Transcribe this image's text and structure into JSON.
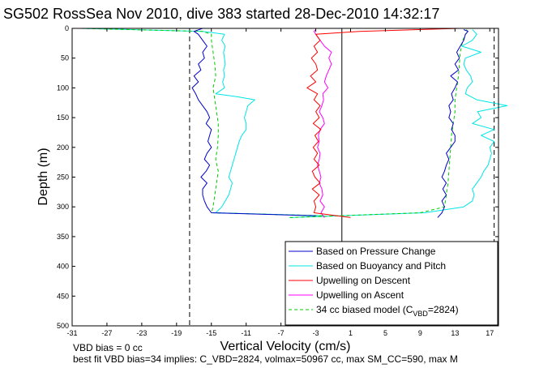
{
  "chart_data": {
    "type": "line",
    "title": "SG502 RossSea Nov 2010, dive 383 started 28-Dec-2010 14:32:17",
    "xlabel": "Vertical Velocity (cm/s)",
    "ylabel": "Depth (m)",
    "xlim": [
      -31,
      18
    ],
    "ylim": [
      500,
      0
    ],
    "y_reversed": true,
    "x_ticks": [
      -31,
      -27,
      -23,
      -19,
      -15,
      -11,
      -7,
      -3,
      1,
      5,
      9,
      13,
      17
    ],
    "y_ticks": [
      0,
      50,
      100,
      150,
      200,
      250,
      300,
      350,
      400,
      450,
      500
    ],
    "grid": false,
    "legend_position": "bottom-right",
    "vertical_reference_lines": [
      {
        "x": -17.5,
        "style": "dashed",
        "color": "#000000"
      },
      {
        "x": 0,
        "style": "solid",
        "color": "#000000"
      },
      {
        "x": 17.5,
        "style": "dashed",
        "color": "#000000"
      }
    ],
    "series": [
      {
        "name": "Based on Pressure Change",
        "color": "#0000cc",
        "style": "solid",
        "descent": {
          "depth": [
            0,
            5,
            10,
            20,
            30,
            40,
            50,
            60,
            70,
            80,
            90,
            100,
            110,
            120,
            130,
            140,
            150,
            160,
            170,
            180,
            190,
            200,
            210,
            220,
            230,
            240,
            250,
            260,
            270,
            280,
            290,
            300,
            310,
            315
          ],
          "vel": [
            -16,
            -17,
            -16.5,
            -16,
            -15.5,
            -16,
            -15.8,
            -16.5,
            -16.2,
            -17,
            -16.5,
            -17.2,
            -16.8,
            -16.5,
            -16,
            -15.5,
            -15.2,
            -15.6,
            -15,
            -15.2,
            -15.4,
            -15,
            -15.5,
            -15.8,
            -15.2,
            -15.6,
            -16.2,
            -15.5,
            -16,
            -16,
            -15.8,
            -15.5,
            -15,
            -3
          ]
        },
        "ascent": {
          "depth": [
            318,
            310,
            300,
            290,
            280,
            270,
            260,
            250,
            240,
            230,
            220,
            210,
            200,
            190,
            180,
            170,
            160,
            150,
            140,
            130,
            120,
            110,
            100,
            90,
            80,
            70,
            60,
            50,
            40,
            30,
            20,
            10,
            5,
            2
          ],
          "vel": [
            11,
            11.5,
            11.8,
            11.5,
            12,
            11.6,
            12,
            11.5,
            11.8,
            12,
            12.3,
            12,
            12.5,
            13,
            13,
            12.6,
            12.8,
            12.3,
            12.5,
            12.3,
            12.8,
            12.6,
            13,
            13.3,
            12.5,
            13.4,
            13,
            13.5,
            13.2,
            13.6,
            14,
            14.2,
            14.5,
            14
          ]
        }
      },
      {
        "name": "Based on Buoyancy and Pitch",
        "color": "#00e5e5",
        "style": "solid",
        "descent": {
          "depth": [
            0,
            5,
            10,
            20,
            30,
            40,
            50,
            60,
            70,
            80,
            90,
            100,
            110,
            115,
            120,
            130,
            140,
            150,
            160,
            170,
            180,
            190,
            200,
            210,
            220,
            230,
            240,
            250,
            260,
            270,
            280,
            290,
            300,
            310,
            315
          ],
          "vel": [
            -30,
            -16,
            -13.5,
            -13.8,
            -13.4,
            -13.6,
            -13.5,
            -13.4,
            -13.6,
            -13.5,
            -13.7,
            -13.5,
            -14.5,
            -12,
            -10,
            -10.8,
            -11,
            -11.2,
            -11,
            -11,
            -11.5,
            -11.8,
            -12,
            -12.2,
            -12.4,
            -12.6,
            -12.8,
            -13,
            -12.6,
            -12.8,
            -13,
            -13.4,
            -13.8,
            -14.5,
            -2
          ]
        },
        "ascent": {
          "depth": [
            318,
            310,
            300,
            290,
            280,
            270,
            260,
            250,
            240,
            230,
            220,
            210,
            200,
            190,
            180,
            170,
            160,
            150,
            140,
            130,
            120,
            110,
            100,
            90,
            80,
            70,
            60,
            50,
            40,
            30,
            20,
            10,
            5,
            2
          ],
          "vel": [
            -6,
            9.5,
            14,
            15,
            15.2,
            15,
            15.5,
            16,
            16.3,
            16.8,
            17,
            17.2,
            17,
            17.5,
            16,
            17.5,
            15,
            16,
            15.6,
            19,
            15.5,
            14.2,
            14.4,
            15,
            14.8,
            14.3,
            14,
            14.2,
            16,
            13.8,
            15,
            15.5,
            15.2,
            15
          ]
        }
      },
      {
        "name": "Upwelling on Descent",
        "color": "#ff0000",
        "style": "solid",
        "profile": {
          "depth": [
            0,
            5,
            10,
            20,
            30,
            40,
            50,
            60,
            70,
            80,
            90,
            100,
            110,
            120,
            130,
            140,
            150,
            160,
            170,
            180,
            190,
            200,
            210,
            220,
            230,
            240,
            250,
            260,
            270,
            280,
            290,
            300,
            310,
            318
          ],
          "vel": [
            13.5,
            2,
            -3,
            -2.5,
            -3.2,
            -2.8,
            -3.5,
            -3,
            -2.8,
            -3.6,
            -3,
            -4,
            -2.8,
            -3.2,
            -2.5,
            -3,
            -2.6,
            -3.3,
            -2.4,
            -3.1,
            -2.7,
            -3.3,
            -2.8,
            -3.2,
            -2.6,
            -3.4,
            -3.1,
            -2.5,
            -3.4,
            -2.6,
            -3.2,
            -3,
            -3.2,
            1
          ]
        }
      },
      {
        "name": "Upwelling on Ascent",
        "color": "#ff00ff",
        "style": "solid",
        "profile": {
          "depth": [
            318,
            310,
            300,
            290,
            280,
            270,
            260,
            250,
            240,
            230,
            220,
            210,
            200,
            190,
            180,
            170,
            160,
            150,
            140,
            130,
            120,
            110,
            100,
            90,
            80,
            70,
            60,
            50,
            40,
            30,
            20,
            10,
            5,
            2
          ],
          "vel": [
            -2,
            -2.4,
            -2,
            -2.5,
            -2.2,
            -2.3,
            -2.6,
            -2.4,
            -2.6,
            -2.8,
            -2.6,
            -2.5,
            -2.8,
            -2.6,
            -2.7,
            -2.5,
            -2,
            -2.2,
            -2.6,
            -2.3,
            -2.1,
            -2.2,
            -1.6,
            -2,
            -1.8,
            -1.5,
            -1.2,
            -1.5,
            -1.2,
            -2,
            -2.5,
            -3,
            -3.2,
            -3
          ]
        }
      },
      {
        "name": "34 cc biased model (C",
        "legend_subscript": "VBD",
        "legend_suffix": "=2824)",
        "color": "#00cc00",
        "style": "dashed",
        "descent": {
          "depth": [
            0,
            5,
            10,
            20,
            40,
            60,
            80,
            100,
            120,
            140,
            160,
            180,
            200,
            220,
            240,
            260,
            280,
            300,
            310,
            315
          ],
          "vel": [
            -30,
            -16,
            -15,
            -15,
            -14.8,
            -14.6,
            -14.5,
            -14.8,
            -14.6,
            -14.4,
            -14.2,
            -14.2,
            -14.3,
            -14.5,
            -14.2,
            -14.4,
            -14.6,
            -14.8,
            -15,
            -2
          ]
        },
        "ascent": {
          "depth": [
            318,
            310,
            300,
            280,
            260,
            240,
            220,
            200,
            180,
            160,
            140,
            120,
            100,
            80,
            60,
            40,
            20,
            10,
            5,
            2
          ],
          "vel": [
            -6,
            9,
            11.8,
            12,
            12.2,
            12.3,
            12.4,
            12.5,
            12.6,
            12.8,
            13,
            13,
            13.2,
            13.4,
            13.5,
            13.6,
            13.9,
            14.2,
            14.5,
            14.3
          ]
        }
      }
    ],
    "notes": [
      "VBD bias = 0 cc",
      "best fit VBD bias=34 implies: C_VBD=2824, volmax=50967 cc, max SM_CC=590, max M"
    ]
  }
}
